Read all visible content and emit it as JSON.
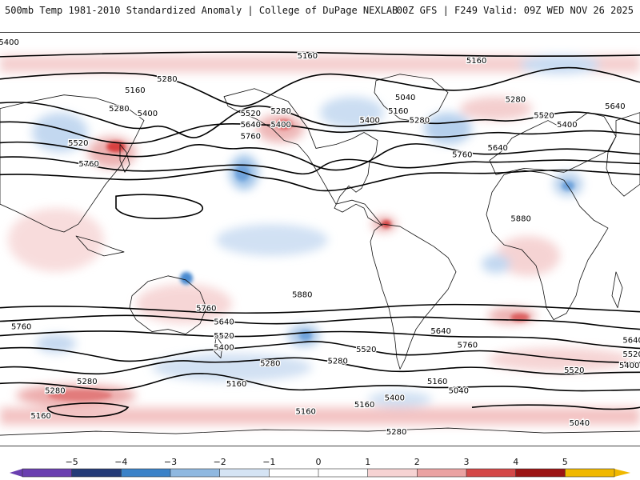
{
  "header": {
    "title": "500mb Temp 1981-2010 Standardized Anomaly | College of DuPage NEXLAB",
    "valid": "00Z GFS | F249 Valid: 09Z WED NOV 26 2025"
  },
  "contour_labels": [
    {
      "text": "5400",
      "lon": 5,
      "lat": 86
    },
    {
      "text": "5160",
      "lon": -92,
      "lat": 78
    },
    {
      "text": "5160",
      "lon": 173,
      "lat": 80
    },
    {
      "text": "5040",
      "lon": -132,
      "lat": 62
    },
    {
      "text": "5160",
      "lon": -136,
      "lat": 56
    },
    {
      "text": "5280",
      "lon": -124,
      "lat": 52
    },
    {
      "text": "5400",
      "lon": -152,
      "lat": 52
    },
    {
      "text": "5280",
      "lon": -70,
      "lat": 61
    },
    {
      "text": "5520",
      "lon": -54,
      "lat": 54
    },
    {
      "text": "5400",
      "lon": -41,
      "lat": 50
    },
    {
      "text": "5640",
      "lon": -14,
      "lat": 58
    },
    {
      "text": "5640",
      "lon": -80,
      "lat": 40
    },
    {
      "text": "5760",
      "lon": -100,
      "lat": 37
    },
    {
      "text": "5880",
      "lon": -67,
      "lat": 9
    },
    {
      "text": "5280",
      "lon": 67,
      "lat": 57
    },
    {
      "text": "5400",
      "lon": 83,
      "lat": 55
    },
    {
      "text": "5160",
      "lon": 76,
      "lat": 65
    },
    {
      "text": "5280",
      "lon": 94,
      "lat": 70
    },
    {
      "text": "5520",
      "lon": 44,
      "lat": 42
    },
    {
      "text": "5760",
      "lon": 50,
      "lat": 33
    },
    {
      "text": "5520",
      "lon": 141,
      "lat": 55
    },
    {
      "text": "5640",
      "lon": 141,
      "lat": 50
    },
    {
      "text": "5760",
      "lon": 141,
      "lat": 45
    },
    {
      "text": "5280",
      "lon": 158,
      "lat": 56
    },
    {
      "text": "5400",
      "lon": 158,
      "lat": 50
    },
    {
      "text": "5880",
      "lon": 170,
      "lat": -24
    },
    {
      "text": "5760",
      "lon": 116,
      "lat": -30
    },
    {
      "text": "5640",
      "lon": 126,
      "lat": -36
    },
    {
      "text": "5520",
      "lon": 126,
      "lat": -42
    },
    {
      "text": "5400",
      "lon": 126,
      "lat": -47
    },
    {
      "text": "5280",
      "lon": 152,
      "lat": -54
    },
    {
      "text": "5160",
      "lon": 133,
      "lat": -63
    },
    {
      "text": "5160",
      "lon": 172,
      "lat": -75
    },
    {
      "text": "5760",
      "lon": 12,
      "lat": -38
    },
    {
      "text": "5640",
      "lon": -4,
      "lat": -44
    },
    {
      "text": "5520",
      "lon": -4,
      "lat": -50
    },
    {
      "text": "5400",
      "lon": -6,
      "lat": -55
    },
    {
      "text": "5280",
      "lon": 49,
      "lat": -62
    },
    {
      "text": "5160",
      "lon": 23,
      "lat": -77
    },
    {
      "text": "5640",
      "lon": -112,
      "lat": -40
    },
    {
      "text": "5760",
      "lon": -97,
      "lat": -46
    },
    {
      "text": "5520",
      "lon": -154,
      "lat": -48
    },
    {
      "text": "5280",
      "lon": -170,
      "lat": -53
    },
    {
      "text": "5160",
      "lon": -114,
      "lat": -62
    },
    {
      "text": "5040",
      "lon": -102,
      "lat": -66
    },
    {
      "text": "5400",
      "lon": -138,
      "lat": -69
    },
    {
      "text": "5160",
      "lon": -155,
      "lat": -72
    },
    {
      "text": "5280",
      "lon": -137,
      "lat": -84
    },
    {
      "text": "5520",
      "lon": -37,
      "lat": -57
    },
    {
      "text": "5280",
      "lon": 31,
      "lat": -66
    },
    {
      "text": "5040",
      "lon": -34,
      "lat": -80
    }
  ],
  "colorbar": {
    "ticks": [
      "−5",
      "−4",
      "−3",
      "−2",
      "−1",
      "0",
      "1",
      "2",
      "3",
      "4",
      "5"
    ],
    "colors": {
      "neg5": "#6a3fb0",
      "neg4": "#243b78",
      "neg3": "#3b82c8",
      "neg2": "#8fb8e0",
      "neg1": "#d5e4f4",
      "zero": "#ffffff",
      "pos1": "#f6d3d3",
      "pos2": "#eaa2a2",
      "pos3": "#d44848",
      "pos4": "#9b1414",
      "pos5": "#f0b800"
    }
  },
  "field_colors": {
    "warm": "#f3c8c8",
    "cold": "#c6daf0",
    "strong_warm": "#d94040",
    "strong_cold": "#4a8ad0",
    "contour": "#000000",
    "coast": "#111111"
  }
}
